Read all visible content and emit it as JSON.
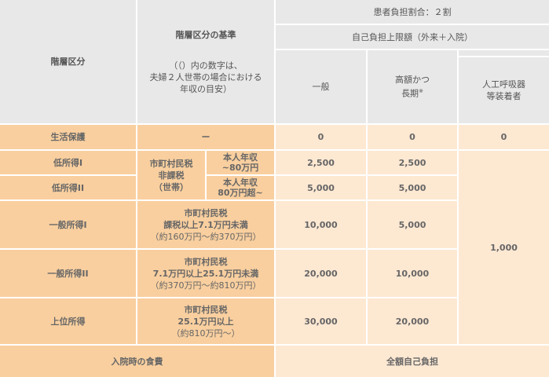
{
  "header": {
    "tier": "階層区分",
    "criteria_title": "階層区分の基準",
    "criteria_note": [
      "（（）内の数字は、",
      "夫婦２人世帯の場合における",
      "年収の目安）"
    ],
    "ratio": "患者負担割合：２割",
    "limit": "自己負担上限額（外来＋入院）",
    "general": "一般",
    "long_term": "高額かつ",
    "long_term2": "長期",
    "long_term_mark": "※",
    "ventilator": [
      "人工呼吸器",
      "等装着者"
    ]
  },
  "rows": [
    {
      "tier": "生活保護",
      "criteria": "ー",
      "general": "0",
      "long": "0",
      "vent": "0"
    },
    {
      "tier": "低所得I",
      "sub": [
        "本人年収",
        "~80万円"
      ],
      "general": "2,500",
      "long": "2,500"
    },
    {
      "tier": "低所得II",
      "sub": [
        "本人年収",
        "80万円超~"
      ],
      "general": "5,000",
      "long": "5,000"
    },
    {
      "tier": "一般所得I",
      "criteria": [
        "市町村民税",
        "課税以上7.1万円未満",
        "（約160万円～約370万円）"
      ],
      "general": "10,000",
      "long": "5,000"
    },
    {
      "tier": "一般所得II",
      "criteria": [
        "市町村民税",
        "7.1万円以上25.1万円未満",
        "（約370万円～約810万円）"
      ],
      "general": "20,000",
      "long": "10,000"
    },
    {
      "tier": "上位所得",
      "criteria": [
        "市町村民税",
        "25.1万円以上",
        "（約810万円～）"
      ],
      "general": "30,000",
      "long": "20,000"
    }
  ],
  "low_income_criteria": [
    "市町村民税",
    "非課税",
    "（世帯）"
  ],
  "vent_shared": "1,000",
  "meal": {
    "label": "入院時の食費",
    "value": "全額自己負担"
  },
  "colors": {
    "header": "#e8e8e8",
    "tier_bg": "#f9cf9f",
    "value_bg": "#fde8d2",
    "text": "#666666"
  }
}
